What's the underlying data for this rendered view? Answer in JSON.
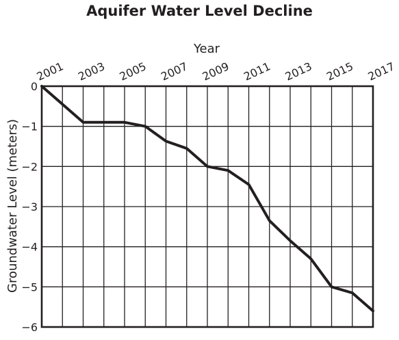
{
  "chart_data": {
    "type": "line",
    "title": "Aquifer Water Level Decline",
    "xlabel": "Year",
    "ylabel": "Groundwater Level (meters)",
    "xlim": [
      2001,
      2017
    ],
    "ylim": [
      -6,
      0
    ],
    "x_ticks": [
      "2001",
      "2003",
      "2005",
      "2007",
      "2009",
      "2011",
      "2013",
      "2015",
      "2017"
    ],
    "y_ticks": [
      "0",
      "−1",
      "−2",
      "−3",
      "−4",
      "−5",
      "−6"
    ],
    "grid": true,
    "x_axis_position": "top",
    "series": [
      {
        "x": [
          2001,
          2003,
          2004,
          2005,
          2006,
          2007,
          2008,
          2009,
          2010,
          2011,
          2012,
          2013,
          2014,
          2015,
          2016,
          2017
        ],
        "y": [
          0,
          -0.9,
          -0.9,
          -0.9,
          -1.0,
          -1.37,
          -1.55,
          -2.0,
          -2.1,
          -2.45,
          -3.35,
          -3.85,
          -4.3,
          -5.0,
          -5.15,
          -5.6
        ],
        "color": "#231f20"
      }
    ]
  }
}
